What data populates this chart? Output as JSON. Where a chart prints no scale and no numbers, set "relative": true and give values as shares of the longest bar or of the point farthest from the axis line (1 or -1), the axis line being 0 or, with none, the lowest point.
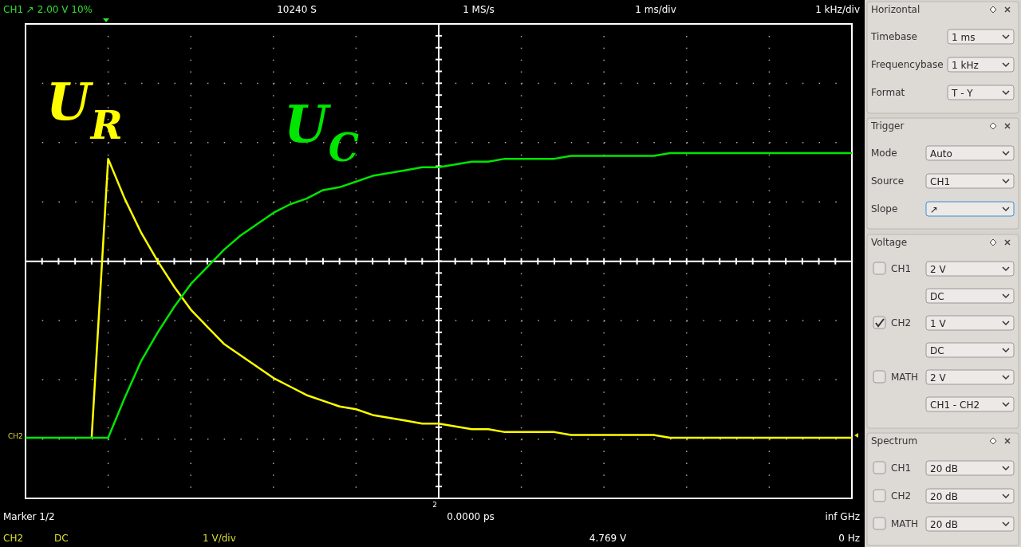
{
  "chart_data": {
    "type": "line",
    "relative": true,
    "grid": true,
    "ref_lines": [
      {
        "axis": "y",
        "value": 0.62,
        "color": "#ffffff"
      }
    ],
    "categories": [
      null,
      null,
      null,
      null,
      null,
      null,
      null,
      null,
      null,
      null,
      null,
      null,
      null,
      null,
      null,
      null,
      null,
      null,
      null,
      null,
      null,
      null,
      null,
      null,
      null,
      null,
      null,
      null,
      null,
      null,
      null,
      null,
      null,
      null,
      null,
      null,
      null,
      null,
      null,
      null,
      null,
      null,
      null,
      null,
      null,
      null,
      null,
      null,
      null,
      null,
      null
    ],
    "series": [
      {
        "name": "U$_{R}$",
        "color": "#ffff00",
        "values": [
          null,
          null,
          null,
          null,
          0,
          0.98,
          0.84,
          0.72,
          0.62,
          0.53,
          0.45,
          0.39,
          0.33,
          0.29,
          0.25,
          0.21,
          0.18,
          0.15,
          0.13,
          0.11,
          0.1,
          0.08,
          0.07,
          0.06,
          0.05,
          0.05,
          0.04,
          0.03,
          0.03,
          0.02,
          0.02,
          0.02,
          0.02,
          0.01,
          0.01,
          0.01,
          0.01,
          0.01,
          0.01,
          0,
          0,
          0,
          0,
          0,
          0,
          0,
          0,
          0,
          0,
          0,
          0
        ]
      },
      {
        "name": "U$_{C}$",
        "color": "#00e600",
        "values": [
          0,
          0,
          0,
          0,
          0,
          0,
          0.14,
          0.27,
          0.37,
          0.46,
          0.54,
          0.6,
          0.66,
          0.71,
          0.75,
          0.79,
          0.82,
          0.84,
          0.87,
          0.88,
          0.9,
          0.92,
          0.93,
          0.94,
          0.95,
          0.95,
          0.96,
          0.97,
          0.97,
          0.98,
          0.98,
          0.98,
          0.98,
          0.99,
          0.99,
          0.99,
          0.99,
          0.99,
          0.99,
          1,
          1,
          1,
          1,
          1,
          1,
          1,
          1,
          1,
          1,
          1,
          1
        ]
      }
    ],
    "annotations": [
      "CH1 ↗ 2.00 V 10%",
      "10240 S",
      "1 MS/s",
      "1 ms/div",
      "1 kHz/div",
      "Marker 1/2",
      "0.0000 ps",
      "inf GHz",
      "CH2",
      "DC",
      "1 V/div",
      "4.769 V",
      "0 Hz",
      "CH2",
      "2",
      "Horizontal",
      "Timebase",
      "Frequencybase",
      "Format",
      "Trigger",
      "Mode",
      "Source",
      "Slope",
      "Voltage",
      "CH1",
      "CH2",
      "MATH",
      "Spectrum",
      "CH1",
      "CH2",
      "MATH",
      "1 ms",
      "1 kHz",
      "T - Y",
      "Auto",
      "CH1",
      "↗",
      "2 V",
      "DC",
      "1 V",
      "DC",
      "2 V",
      "CH1 - CH2",
      "20 dB",
      "20 dB",
      "20 dB"
    ]
  }
}
